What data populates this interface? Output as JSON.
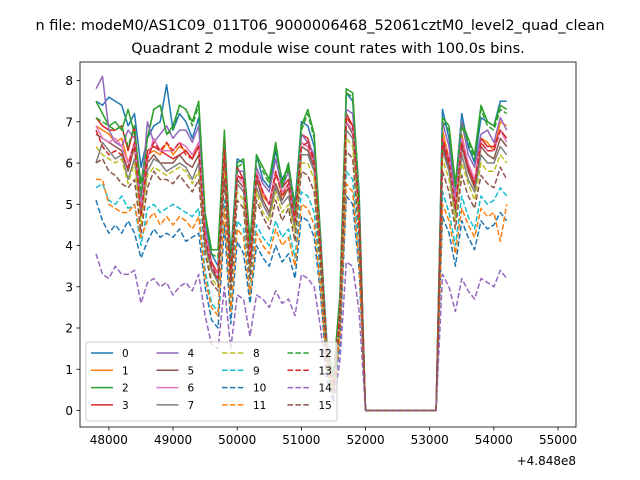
{
  "chart_data": {
    "type": "line",
    "suptitle": "n file: modeM0/AS1C09_011T06_9000006468_52061cztM0_level2_quad_clean",
    "title": "Quadrant 2 module wise count rates with 100.0s bins.",
    "xlabel": "",
    "ylabel": "",
    "x_offset_label": "+4.848e8",
    "xlim": [
      47550,
      55280
    ],
    "ylim": [
      -0.4,
      8.45
    ],
    "x_ticks": [
      48000,
      49000,
      50000,
      51000,
      52000,
      53000,
      54000,
      55000
    ],
    "x_tick_labels": [
      "48000",
      "49000",
      "50000",
      "51000",
      "52000",
      "53000",
      "54000",
      "55000"
    ],
    "y_ticks": [
      0,
      1,
      2,
      3,
      4,
      5,
      6,
      7,
      8
    ],
    "y_tick_labels": [
      "0",
      "1",
      "2",
      "3",
      "4",
      "5",
      "6",
      "7",
      "8"
    ],
    "grid": false,
    "legend_position": "lower-left",
    "legend_columns": 4,
    "x_start": 47800,
    "x_step": 100,
    "series": [
      {
        "name": "0",
        "style": "solid",
        "color": "#1f77b4",
        "values": [
          7.5,
          7.4,
          7.6,
          7.5,
          7.4,
          6.9,
          7.2,
          5.9,
          6.6,
          6.9,
          7.0,
          7.9,
          6.8,
          7.2,
          7.0,
          6.6,
          7.1,
          4.6,
          3.8,
          3.5,
          6.7,
          3.7,
          6.1,
          6.0,
          4.0,
          6.2,
          5.6,
          5.4,
          6.3,
          5.6,
          5.9,
          5.0,
          7.0,
          6.9,
          6.4,
          4.2,
          1.6,
          0.7,
          2.6,
          7.7,
          7.5,
          5.3,
          0.0,
          0.0,
          0.0,
          0.0,
          0.0,
          0.0,
          0.0,
          0.0,
          0.0,
          0.0,
          0.0,
          0.0,
          7.3,
          6.6,
          5.4,
          7.2,
          6.4,
          6.0,
          7.1,
          7.0,
          6.9,
          7.5,
          7.5
        ]
      },
      {
        "name": "1",
        "style": "solid",
        "color": "#ff7f0e",
        "values": [
          6.9,
          6.8,
          6.7,
          6.5,
          6.6,
          6.0,
          6.5,
          5.0,
          6.2,
          6.3,
          6.2,
          6.5,
          6.2,
          6.4,
          6.3,
          6.1,
          6.5,
          4.2,
          3.6,
          3.3,
          6.1,
          3.4,
          5.7,
          5.6,
          3.7,
          5.8,
          5.2,
          5.0,
          5.8,
          5.2,
          5.4,
          4.6,
          6.5,
          6.4,
          5.9,
          4.0,
          1.5,
          0.6,
          2.4,
          7.1,
          6.9,
          4.9,
          0.0,
          0.0,
          0.0,
          0.0,
          0.0,
          0.0,
          0.0,
          0.0,
          0.0,
          0.0,
          0.0,
          0.0,
          6.8,
          6.1,
          5.0,
          6.7,
          5.9,
          5.6,
          6.6,
          6.5,
          6.3,
          7.0,
          6.9
        ]
      },
      {
        "name": "2",
        "style": "solid",
        "color": "#2ca02c",
        "values": [
          7.5,
          7.2,
          6.9,
          7.0,
          6.8,
          7.3,
          6.7,
          5.5,
          6.6,
          7.3,
          7.4,
          6.7,
          6.9,
          7.4,
          7.3,
          7.0,
          7.5,
          4.8,
          3.9,
          3.9,
          6.8,
          3.6,
          6.0,
          6.1,
          4.1,
          6.2,
          5.9,
          5.6,
          6.5,
          5.5,
          6.0,
          4.9,
          6.9,
          7.3,
          6.7,
          4.2,
          1.5,
          0.9,
          2.8,
          7.8,
          7.7,
          5.2,
          0.0,
          0.0,
          0.0,
          0.0,
          0.0,
          0.0,
          0.0,
          0.0,
          0.0,
          0.0,
          0.0,
          0.0,
          7.1,
          6.9,
          5.5,
          7.0,
          6.6,
          6.2,
          7.4,
          7.0,
          6.9,
          7.4,
          7.3
        ]
      },
      {
        "name": "3",
        "style": "solid",
        "color": "#d62728",
        "values": [
          7.1,
          6.9,
          6.8,
          6.8,
          6.9,
          6.3,
          6.9,
          5.0,
          6.3,
          6.4,
          6.3,
          6.2,
          6.1,
          6.2,
          6.3,
          6.1,
          6.4,
          4.4,
          3.6,
          3.3,
          6.6,
          3.2,
          5.9,
          5.6,
          3.6,
          5.7,
          5.3,
          5.0,
          5.7,
          5.4,
          5.6,
          4.6,
          6.7,
          6.6,
          6.1,
          4.0,
          1.4,
          0.6,
          2.3,
          7.2,
          6.9,
          4.8,
          0.0,
          0.0,
          0.0,
          0.0,
          0.0,
          0.0,
          0.0,
          0.0,
          0.0,
          0.0,
          0.0,
          0.0,
          6.5,
          6.0,
          4.9,
          6.6,
          5.9,
          5.5,
          6.6,
          6.4,
          6.4,
          6.8,
          6.6
        ]
      },
      {
        "name": "4",
        "style": "solid",
        "color": "#9467bd",
        "values": [
          7.8,
          8.1,
          6.8,
          6.5,
          6.4,
          6.8,
          6.6,
          5.1,
          7.0,
          6.5,
          6.7,
          6.9,
          6.6,
          6.8,
          6.8,
          6.5,
          6.9,
          4.5,
          3.4,
          3.2,
          6.3,
          3.4,
          5.8,
          5.8,
          3.8,
          5.9,
          5.5,
          5.3,
          6.1,
          5.4,
          5.8,
          4.8,
          6.7,
          6.5,
          6.2,
          4.1,
          1.5,
          0.6,
          2.5,
          7.3,
          7.2,
          5.0,
          0.0,
          0.0,
          0.0,
          0.0,
          0.0,
          0.0,
          0.0,
          0.0,
          0.0,
          0.0,
          0.0,
          0.0,
          7.0,
          6.4,
          5.2,
          7.0,
          6.2,
          5.9,
          6.7,
          6.8,
          6.5,
          7.1,
          6.8
        ]
      },
      {
        "name": "5",
        "style": "solid",
        "color": "#8c564b",
        "values": [
          6.7,
          6.6,
          6.5,
          6.4,
          6.3,
          5.8,
          6.4,
          4.8,
          6.0,
          6.2,
          6.0,
          6.0,
          6.0,
          6.2,
          6.0,
          5.9,
          6.2,
          4.2,
          3.4,
          3.2,
          6.2,
          3.2,
          5.6,
          5.4,
          3.5,
          5.6,
          5.1,
          4.8,
          5.5,
          5.1,
          5.4,
          4.5,
          6.4,
          6.3,
          5.9,
          3.8,
          1.4,
          0.6,
          2.3,
          7.0,
          6.7,
          4.7,
          0.0,
          0.0,
          0.0,
          0.0,
          0.0,
          0.0,
          0.0,
          0.0,
          0.0,
          0.0,
          0.0,
          0.0,
          6.4,
          5.9,
          4.8,
          6.4,
          5.8,
          5.4,
          6.4,
          6.2,
          6.1,
          6.6,
          6.4
        ]
      },
      {
        "name": "6",
        "style": "solid",
        "color": "#e377c2",
        "values": [
          6.9,
          6.6,
          6.5,
          6.6,
          6.4,
          6.0,
          6.5,
          4.9,
          6.1,
          6.6,
          6.3,
          6.3,
          6.3,
          6.5,
          6.4,
          6.2,
          6.5,
          4.3,
          3.5,
          3.3,
          6.3,
          3.3,
          5.7,
          5.5,
          3.6,
          5.8,
          5.3,
          5.0,
          5.8,
          5.3,
          5.5,
          4.6,
          6.5,
          6.4,
          6.0,
          3.9,
          1.5,
          0.6,
          2.4,
          7.0,
          6.8,
          4.8,
          0.0,
          0.0,
          0.0,
          0.0,
          0.0,
          0.0,
          0.0,
          0.0,
          0.0,
          0.0,
          0.0,
          0.0,
          6.6,
          6.1,
          5.0,
          6.6,
          6.0,
          5.6,
          6.5,
          6.3,
          6.3,
          6.8,
          6.5
        ]
      },
      {
        "name": "7",
        "style": "solid",
        "color": "#7f7f7f",
        "values": [
          6.0,
          6.5,
          6.3,
          6.1,
          6.2,
          5.6,
          6.1,
          4.7,
          5.8,
          6.1,
          6.0,
          5.8,
          5.9,
          6.0,
          5.9,
          5.6,
          6.0,
          4.0,
          3.4,
          3.1,
          6.0,
          3.1,
          5.5,
          5.3,
          3.4,
          5.4,
          5.0,
          4.7,
          5.4,
          5.0,
          5.2,
          4.4,
          6.2,
          6.2,
          5.8,
          3.8,
          1.3,
          0.5,
          2.2,
          6.8,
          6.6,
          4.6,
          0.0,
          0.0,
          0.0,
          0.0,
          0.0,
          0.0,
          0.0,
          0.0,
          0.0,
          0.0,
          0.0,
          0.0,
          6.3,
          5.8,
          4.7,
          6.2,
          5.6,
          5.3,
          6.2,
          6.0,
          6.0,
          6.4,
          6.2
        ]
      },
      {
        "name": "8",
        "style": "dashed",
        "color": "#bcbd22",
        "values": [
          6.4,
          6.2,
          6.1,
          6.0,
          6.1,
          5.5,
          6.0,
          4.5,
          5.7,
          5.9,
          5.8,
          5.7,
          5.8,
          5.9,
          5.8,
          5.5,
          5.8,
          3.9,
          3.2,
          3.0,
          5.8,
          3.0,
          5.3,
          5.1,
          3.3,
          5.3,
          4.8,
          4.6,
          5.3,
          4.8,
          5.0,
          4.3,
          6.0,
          6.0,
          5.6,
          3.6,
          1.3,
          0.5,
          2.1,
          6.6,
          6.4,
          4.4,
          0.0,
          0.0,
          0.0,
          0.0,
          0.0,
          0.0,
          0.0,
          0.0,
          0.0,
          0.0,
          0.0,
          0.0,
          6.1,
          5.6,
          4.6,
          6.0,
          5.5,
          5.1,
          6.0,
          5.8,
          5.8,
          6.2,
          6.0
        ]
      },
      {
        "name": "9",
        "style": "dashed",
        "color": "#17becf",
        "values": [
          5.4,
          5.5,
          5.1,
          5.0,
          5.2,
          4.9,
          5.0,
          4.0,
          4.9,
          5.0,
          4.8,
          4.9,
          5.0,
          4.9,
          4.8,
          4.7,
          4.9,
          3.4,
          2.6,
          2.4,
          5.1,
          2.6,
          4.6,
          4.4,
          2.9,
          4.5,
          4.2,
          4.0,
          4.6,
          4.2,
          4.4,
          3.7,
          5.3,
          5.2,
          4.8,
          3.2,
          1.1,
          0.4,
          1.9,
          5.8,
          5.6,
          3.8,
          0.0,
          0.0,
          0.0,
          0.0,
          0.0,
          0.0,
          0.0,
          0.0,
          0.0,
          0.0,
          0.0,
          0.0,
          5.3,
          4.8,
          4.0,
          5.2,
          4.7,
          4.4,
          5.2,
          5.0,
          5.1,
          5.4,
          5.2
        ]
      },
      {
        "name": "10",
        "style": "dashed",
        "color": "#1f77b4",
        "values": [
          5.1,
          4.6,
          4.3,
          4.5,
          4.3,
          4.6,
          4.3,
          3.7,
          4.1,
          4.4,
          4.2,
          4.3,
          4.2,
          4.4,
          4.1,
          4.2,
          4.3,
          3.0,
          2.2,
          2.0,
          4.5,
          2.1,
          4.1,
          3.8,
          2.6,
          4.0,
          3.7,
          3.5,
          4.0,
          3.6,
          3.8,
          3.2,
          4.7,
          4.6,
          4.2,
          2.8,
          0.9,
          0.3,
          1.6,
          5.2,
          5.0,
          3.4,
          0.0,
          0.0,
          0.0,
          0.0,
          0.0,
          0.0,
          0.0,
          0.0,
          0.0,
          0.0,
          0.0,
          0.0,
          4.7,
          4.3,
          3.5,
          4.6,
          4.2,
          3.9,
          4.6,
          4.4,
          4.5,
          4.8,
          4.6
        ]
      },
      {
        "name": "11",
        "style": "dashed",
        "color": "#ff7f0e",
        "values": [
          5.6,
          5.6,
          5.0,
          4.9,
          4.8,
          4.8,
          5.0,
          4.2,
          4.6,
          4.8,
          4.5,
          4.7,
          4.5,
          4.7,
          4.6,
          4.4,
          4.7,
          3.2,
          2.5,
          2.3,
          4.9,
          2.4,
          4.4,
          4.2,
          2.8,
          4.3,
          4.0,
          3.8,
          4.4,
          4.0,
          4.2,
          3.5,
          5.0,
          4.9,
          4.5,
          3.0,
          1.0,
          0.4,
          1.8,
          5.5,
          5.3,
          3.6,
          0.0,
          0.0,
          0.0,
          0.0,
          0.0,
          0.0,
          0.0,
          0.0,
          0.0,
          0.0,
          0.0,
          0.0,
          5.0,
          4.6,
          3.8,
          4.9,
          4.5,
          4.2,
          4.9,
          4.7,
          4.8,
          4.1,
          5.0
        ]
      },
      {
        "name": "12",
        "style": "dashed",
        "color": "#2ca02c",
        "values": [
          7.1,
          7.0,
          6.9,
          6.8,
          6.9,
          6.4,
          6.9,
          5.2,
          6.6,
          7.3,
          7.4,
          6.7,
          6.8,
          7.4,
          7.3,
          6.9,
          7.4,
          4.7,
          3.8,
          3.7,
          6.6,
          3.5,
          5.9,
          6.0,
          4.0,
          6.1,
          5.8,
          5.5,
          6.4,
          5.4,
          5.9,
          4.8,
          6.8,
          7.2,
          6.6,
          4.1,
          1.5,
          0.8,
          2.7,
          7.7,
          7.6,
          5.1,
          0.0,
          0.0,
          0.0,
          0.0,
          0.0,
          0.0,
          0.0,
          0.0,
          0.0,
          0.0,
          0.0,
          0.0,
          7.0,
          6.8,
          5.4,
          6.9,
          6.5,
          6.1,
          7.3,
          6.9,
          6.8,
          7.3,
          7.2
        ]
      },
      {
        "name": "13",
        "style": "dashed",
        "color": "#d62728",
        "values": [
          6.8,
          6.4,
          6.2,
          6.3,
          6.2,
          5.9,
          6.5,
          4.7,
          6.1,
          6.5,
          6.3,
          6.5,
          6.3,
          6.5,
          6.2,
          6.1,
          6.4,
          4.2,
          3.5,
          3.2,
          6.3,
          3.2,
          5.7,
          5.6,
          3.6,
          5.7,
          5.3,
          5.0,
          5.8,
          5.2,
          5.5,
          4.6,
          6.4,
          6.5,
          6.0,
          3.9,
          1.4,
          0.6,
          2.4,
          7.1,
          6.9,
          4.8,
          0.0,
          0.0,
          0.0,
          0.0,
          0.0,
          0.0,
          0.0,
          0.0,
          0.0,
          0.0,
          0.0,
          0.0,
          6.6,
          6.1,
          4.9,
          6.5,
          5.9,
          5.5,
          6.5,
          6.3,
          6.3,
          6.8,
          6.6
        ]
      },
      {
        "name": "14",
        "style": "dashed",
        "color": "#9467bd",
        "values": [
          3.8,
          3.3,
          3.2,
          3.5,
          3.3,
          3.3,
          3.4,
          2.6,
          3.1,
          3.2,
          3.0,
          3.1,
          2.8,
          3.0,
          3.1,
          2.9,
          3.3,
          2.3,
          1.6,
          1.5,
          3.0,
          1.5,
          2.8,
          2.7,
          1.8,
          2.8,
          2.7,
          2.5,
          2.9,
          2.6,
          2.7,
          2.3,
          3.3,
          3.2,
          3.0,
          2.0,
          0.7,
          0.2,
          1.2,
          3.6,
          3.5,
          2.4,
          0.0,
          0.0,
          0.0,
          0.0,
          0.0,
          0.0,
          0.0,
          0.0,
          0.0,
          0.0,
          0.0,
          0.0,
          3.3,
          3.0,
          2.4,
          3.2,
          2.9,
          2.7,
          3.2,
          3.1,
          3.0,
          3.4,
          3.2
        ]
      },
      {
        "name": "15",
        "style": "dashed",
        "color": "#8c564b",
        "values": [
          6.0,
          6.1,
          5.8,
          5.7,
          5.5,
          5.4,
          5.6,
          4.3,
          5.4,
          5.8,
          5.6,
          5.6,
          5.5,
          5.7,
          5.5,
          5.3,
          5.6,
          3.8,
          3.1,
          2.9,
          5.6,
          2.9,
          5.1,
          4.9,
          3.2,
          5.1,
          4.7,
          4.4,
          5.1,
          4.6,
          4.9,
          4.1,
          5.8,
          5.7,
          5.3,
          3.5,
          1.2,
          0.5,
          2.1,
          6.3,
          6.1,
          4.2,
          0.0,
          0.0,
          0.0,
          0.0,
          0.0,
          0.0,
          0.0,
          0.0,
          0.0,
          0.0,
          0.0,
          0.0,
          5.8,
          5.3,
          4.4,
          5.7,
          5.2,
          4.9,
          5.7,
          5.5,
          5.4,
          5.9,
          5.6
        ]
      }
    ]
  }
}
